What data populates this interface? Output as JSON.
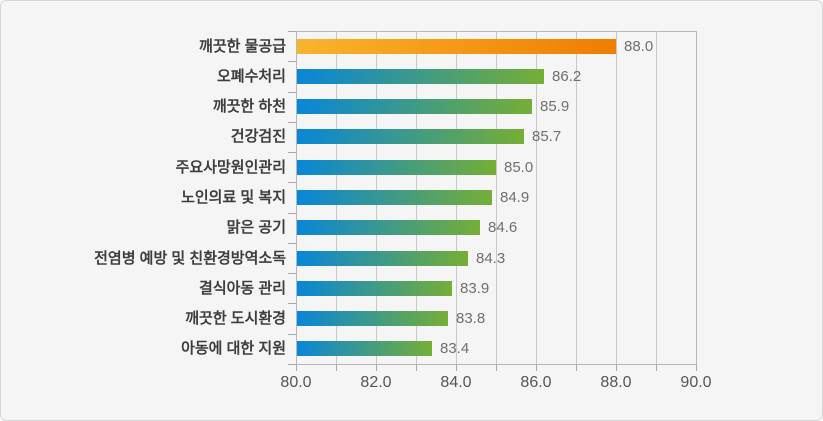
{
  "panel": {
    "background": "#f5f5f5",
    "border_color": "#d6d6d6"
  },
  "chart_data": {
    "type": "bar",
    "orientation": "horizontal",
    "title": "",
    "categories": [
      "깨끗한 물공급",
      "오폐수처리",
      "깨끗한 하천",
      "건강검진",
      "주요사망원인관리",
      "노인의료 및 복지",
      "맑은 공기",
      "전염병 예방 및 친환경방역소독",
      "결식아동 관리",
      "깨끗한 도시환경",
      "아동에 대한 지원"
    ],
    "values": [
      88.0,
      86.2,
      85.9,
      85.7,
      85.0,
      84.9,
      84.6,
      84.3,
      83.9,
      83.8,
      83.4
    ],
    "value_labels": [
      "88.0",
      "86.2",
      "85.9",
      "85.7",
      "85.0",
      "84.9",
      "84.6",
      "84.3",
      "83.9",
      "83.8",
      "83.4"
    ],
    "xlim": [
      80.0,
      90.0
    ],
    "x_tick_step": 1.0,
    "x_label_step": 2.0,
    "x_tick_labels": [
      "80.0",
      "82.0",
      "84.0",
      "86.0",
      "88.0",
      "90.0"
    ],
    "grid": "vertical",
    "legend_position": "none",
    "highlight_index": 0,
    "colors": {
      "bar_gradient": [
        "#0886d8",
        "#76ae35"
      ],
      "highlight_gradient": [
        "#f9b42d",
        "#ef7d00"
      ],
      "grid": "#c8c8c8",
      "frame": "#b7b7b7",
      "tick": "#aaaaaa",
      "category_label": "#3d3d3d",
      "value_label": "#6f6f6f",
      "axis_label": "#555555"
    }
  }
}
